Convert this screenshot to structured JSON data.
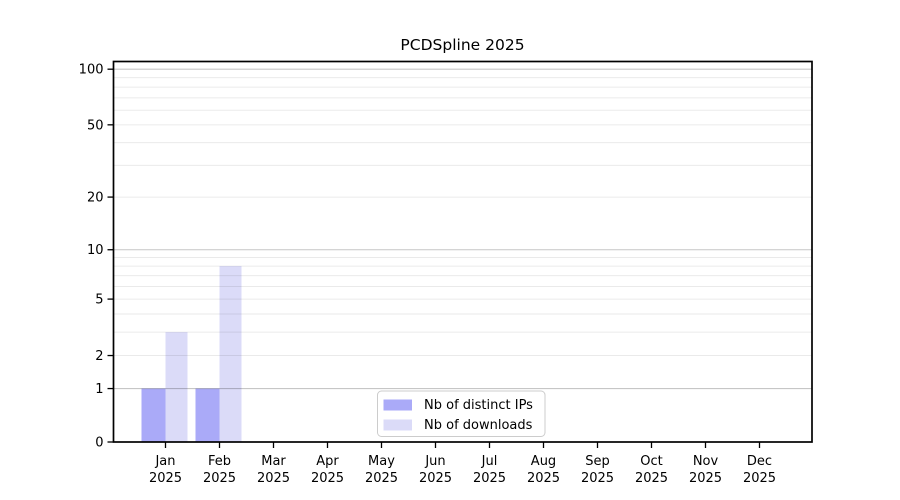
{
  "chart_data": {
    "type": "bar",
    "title": "PCDSpline 2025",
    "categories": [
      "Jan 2025",
      "Feb 2025",
      "Mar 2025",
      "Apr 2025",
      "May 2025",
      "Jun 2025",
      "Jul 2025",
      "Aug 2025",
      "Sep 2025",
      "Oct 2025",
      "Nov 2025",
      "Dec 2025"
    ],
    "x_tick_line1": [
      "Jan",
      "Feb",
      "Mar",
      "Apr",
      "May",
      "Jun",
      "Jul",
      "Aug",
      "Sep",
      "Oct",
      "Nov",
      "Dec"
    ],
    "x_tick_line2": "2025",
    "series": [
      {
        "name": "Nb of distinct IPs",
        "color": "#aaaaf8",
        "values": [
          1,
          1,
          0,
          0,
          0,
          0,
          0,
          0,
          0,
          0,
          0,
          0
        ]
      },
      {
        "name": "Nb of downloads",
        "color": "#dbdbf8",
        "values": [
          3,
          8,
          0,
          0,
          0,
          0,
          0,
          0,
          0,
          0,
          0,
          0
        ]
      }
    ],
    "xlabel": "",
    "ylabel": "",
    "y_axis": {
      "scale": "log10(1+v)",
      "tick_values": [
        0,
        1,
        2,
        5,
        10,
        20,
        50,
        100
      ],
      "tick_labels": [
        "0",
        "1",
        "2",
        "5",
        "10",
        "20",
        "50",
        "100"
      ],
      "major_gridlines": [
        1,
        10,
        100
      ],
      "minor_gridlines": [
        2,
        3,
        4,
        5,
        6,
        7,
        8,
        9,
        20,
        30,
        40,
        50,
        60,
        70,
        80,
        90
      ],
      "ylim": [
        0,
        110
      ]
    },
    "grid": "horizontal",
    "legend": {
      "position": "lower-center",
      "entries": [
        "Nb of distinct IPs",
        "Nb of downloads"
      ]
    },
    "colors": {
      "distinct_ips_bar": "#aaaaf8",
      "downloads_bar": "#dbdbf8",
      "major_grid": "#c6c6c6",
      "minor_grid": "#ebebeb",
      "axis": "#000000",
      "legend_border": "#cccccc",
      "background": "#ffffff",
      "text": "#000000"
    }
  }
}
